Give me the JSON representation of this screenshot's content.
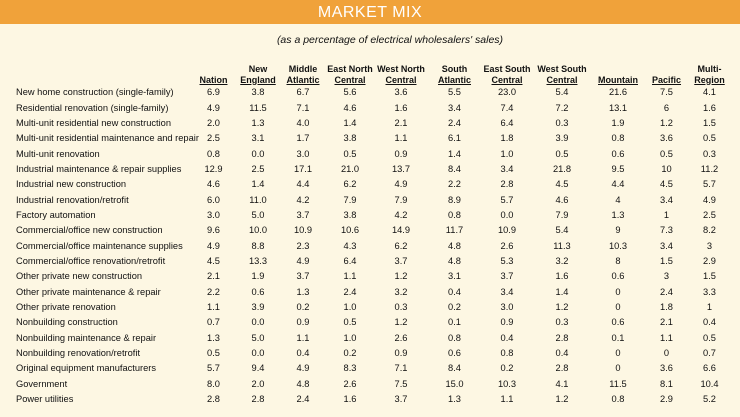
{
  "header": {
    "title": "MARKET MIX",
    "subtitle": "(as a percentage of electrical wholesalers' sales)"
  },
  "table": {
    "columns": [
      [
        "Nation"
      ],
      [
        "New",
        "England"
      ],
      [
        "Middle",
        "Atlantic"
      ],
      [
        "East North",
        "Central"
      ],
      [
        "West North",
        "Central"
      ],
      [
        "South",
        "Atlantic"
      ],
      [
        "East South",
        "Central"
      ],
      [
        "West South",
        "Central"
      ],
      [
        "Mountain"
      ],
      [
        "Pacific"
      ],
      [
        "Multi-",
        "Region"
      ]
    ],
    "rows": [
      [
        "New home construction (single-family)",
        "6.9",
        "3.8",
        "6.7",
        "5.6",
        "3.6",
        "5.5",
        "23.0",
        "5.4",
        "21.6",
        "7.5",
        "4.1"
      ],
      [
        "Residential renovation (single-family)",
        "4.9",
        "11.5",
        "7.1",
        "4.6",
        "1.6",
        "3.4",
        "7.4",
        "7.2",
        "13.1",
        "6",
        "1.6"
      ],
      [
        "Multi-unit residential new construction",
        "2.0",
        "1.3",
        "4.0",
        "1.4",
        "2.1",
        "2.4",
        "6.4",
        "0.3",
        "1.9",
        "1.2",
        "1.5"
      ],
      [
        "Multi-unit residential maintenance and repair",
        "2.5",
        "3.1",
        "1.7",
        "3.8",
        "1.1",
        "6.1",
        "1.8",
        "3.9",
        "0.8",
        "3.6",
        "0.5"
      ],
      [
        "Multi-unit renovation",
        "0.8",
        "0.0",
        "3.0",
        "0.5",
        "0.9",
        "1.4",
        "1.0",
        "0.5",
        "0.6",
        "0.5",
        "0.3"
      ],
      [
        "Industrial maintenance & repair supplies",
        "12.9",
        "2.5",
        "17.1",
        "21.0",
        "13.7",
        "8.4",
        "3.4",
        "21.8",
        "9.5",
        "10",
        "11.2"
      ],
      [
        "Industrial new construction",
        "4.6",
        "1.4",
        "4.4",
        "6.2",
        "4.9",
        "2.2",
        "2.8",
        "4.5",
        "4.4",
        "4.5",
        "5.7"
      ],
      [
        "Industrial renovation/retrofit",
        "6.0",
        "11.0",
        "4.2",
        "7.9",
        "7.9",
        "8.9",
        "5.7",
        "4.6",
        "4",
        "3.4",
        "4.9"
      ],
      [
        "Factory automation",
        "3.0",
        "5.0",
        "3.7",
        "3.8",
        "4.2",
        "0.8",
        "0.0",
        "7.9",
        "1.3",
        "1",
        "2.5"
      ],
      [
        "Commercial/office new construction",
        "9.6",
        "10.0",
        "10.9",
        "10.6",
        "14.9",
        "11.7",
        "10.9",
        "5.4",
        "9",
        "7.3",
        "8.2"
      ],
      [
        "Commercial/office maintenance supplies",
        "4.9",
        "8.8",
        "2.3",
        "4.3",
        "6.2",
        "4.8",
        "2.6",
        "11.3",
        "10.3",
        "3.4",
        "3"
      ],
      [
        "Commercial/office renovation/retrofit",
        "4.5",
        "13.3",
        "4.9",
        "6.4",
        "3.7",
        "4.8",
        "5.3",
        "3.2",
        "8",
        "1.5",
        "2.9"
      ],
      [
        "Other private new construction",
        "2.1",
        "1.9",
        "3.7",
        "1.1",
        "1.2",
        "3.1",
        "3.7",
        "1.6",
        "0.6",
        "3",
        "1.5"
      ],
      [
        "Other private maintenance & repair",
        "2.2",
        "0.6",
        "1.3",
        "2.4",
        "3.2",
        "0.4",
        "3.4",
        "1.4",
        "0",
        "2.4",
        "3.3"
      ],
      [
        "Other private renovation",
        "1.1",
        "3.9",
        "0.2",
        "1.0",
        "0.3",
        "0.2",
        "3.0",
        "1.2",
        "0",
        "1.8",
        "1"
      ],
      [
        "Nonbuilding construction",
        "0.7",
        "0.0",
        "0.9",
        "0.5",
        "1.2",
        "0.1",
        "0.9",
        "0.3",
        "0.6",
        "2.1",
        "0.4"
      ],
      [
        "Nonbuilding maintenance & repair",
        "1.3",
        "5.0",
        "1.1",
        "1.0",
        "2.6",
        "0.8",
        "0.4",
        "2.8",
        "0.1",
        "1.1",
        "0.5"
      ],
      [
        "Nonbuilding renovation/retrofit",
        "0.5",
        "0.0",
        "0.4",
        "0.2",
        "0.9",
        "0.6",
        "0.8",
        "0.4",
        "0",
        "0",
        "0.7"
      ],
      [
        "Original equipment manufacturers",
        "5.7",
        "9.4",
        "4.9",
        "8.3",
        "7.1",
        "8.4",
        "0.2",
        "2.8",
        "0",
        "3.6",
        "6.6"
      ],
      [
        "Government",
        "8.0",
        "2.0",
        "4.8",
        "2.6",
        "7.5",
        "15.0",
        "10.3",
        "4.1",
        "11.5",
        "8.1",
        "10.4"
      ],
      [
        "Power utilities",
        "2.8",
        "2.8",
        "2.4",
        "1.6",
        "3.7",
        "1.3",
        "1.1",
        "1.2",
        "0.8",
        "2.9",
        "5.2"
      ]
    ]
  }
}
